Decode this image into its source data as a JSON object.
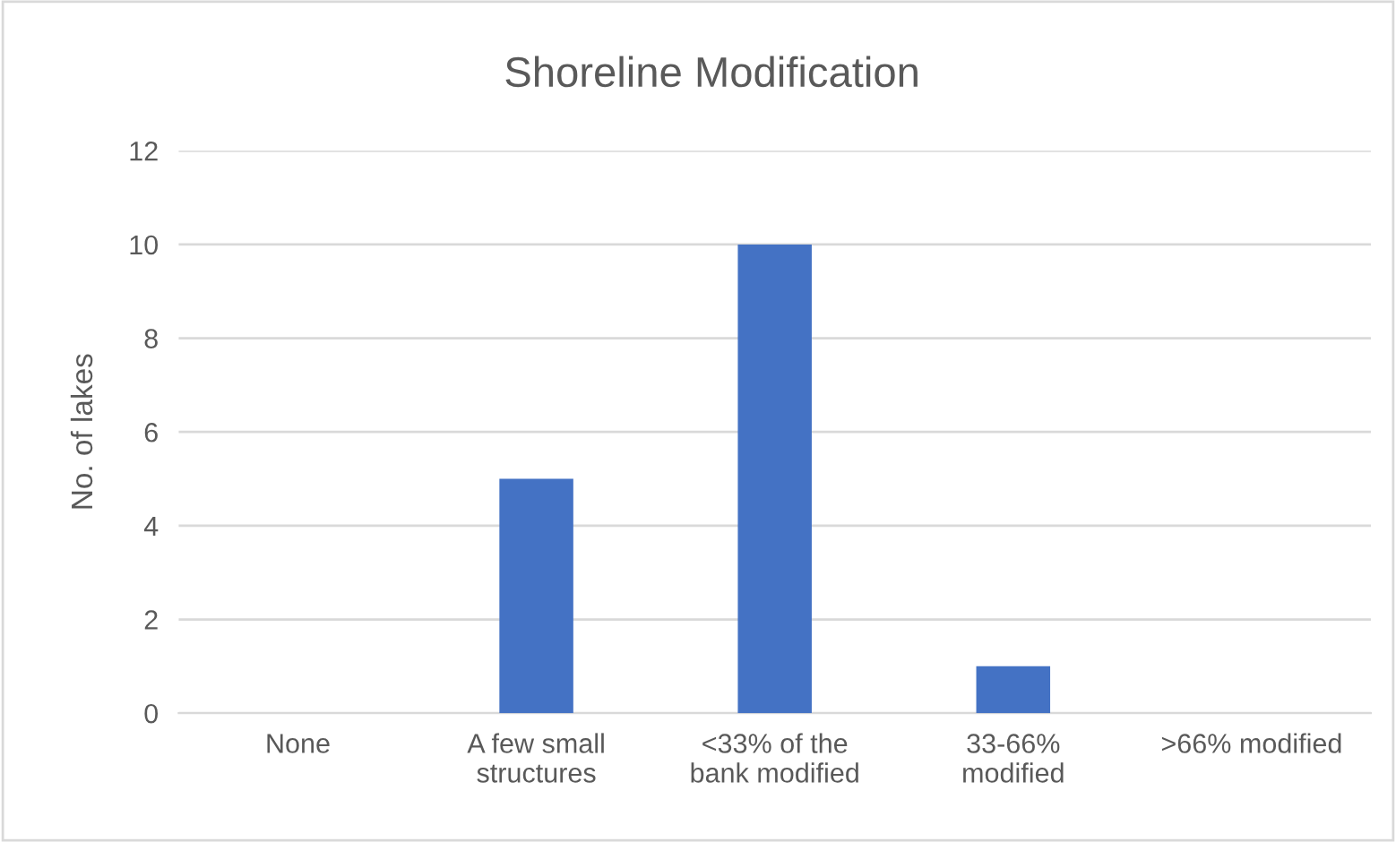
{
  "chart_data": {
    "type": "bar",
    "title": "Shoreline Modification",
    "ylabel": "No. of lakes",
    "categories": [
      "None",
      "A few small\nstructures",
      "<33% of the\nbank modified",
      "33-66%\nmodified",
      ">66% modified"
    ],
    "values": [
      0,
      5,
      10,
      1,
      0
    ],
    "color": "#4472c4",
    "ylim": [
      0,
      12
    ],
    "yticks": [
      0,
      2,
      4,
      6,
      8,
      10,
      12
    ],
    "grid": "y"
  }
}
